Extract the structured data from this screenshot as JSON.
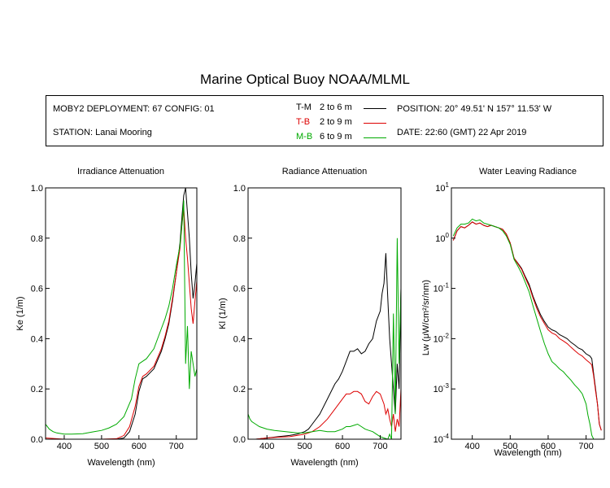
{
  "title": "Marine Optical Buoy NOAA/MLML",
  "info": {
    "deployment": "MOBY2 DEPLOYMENT: 67 CONFIG: 01",
    "station": "STATION: Lanai Mooring",
    "position": "POSITION: 20° 49.51' N   157° 11.53' W",
    "date": "DATE: 22:60 (GMT) 22 Apr 2019"
  },
  "legend": [
    {
      "code": "T-M",
      "range": "2 to 6  m",
      "color": "#000000"
    },
    {
      "code": "T-B",
      "range": "2 to 9  m",
      "color": "#dd0000"
    },
    {
      "code": "M-B",
      "range": "6 to 9  m",
      "color": "#00aa00"
    }
  ],
  "chart_data": [
    {
      "type": "line",
      "title": "Irradiance Attenuation",
      "xlabel": "Wavelength (nm)",
      "ylabel": "Ke  (1/m)",
      "xlim": [
        350,
        755
      ],
      "ylim": [
        0,
        1
      ],
      "xticks": [
        "400",
        "500",
        "600",
        "700"
      ],
      "xtick_values": [
        400,
        500,
        600,
        700
      ],
      "yticks": [
        "0.0",
        "0.2",
        "0.4",
        "0.6",
        "0.8",
        "1.0"
      ],
      "ytick_values": [
        0,
        0.2,
        0.4,
        0.6,
        0.8,
        1.0
      ],
      "series": [
        {
          "color": "#000000",
          "x": [
            350,
            400,
            450,
            500,
            540,
            560,
            575,
            590,
            600,
            610,
            620,
            640,
            660,
            670,
            680,
            690,
            700,
            710,
            715,
            720,
            725,
            730,
            735,
            740,
            745,
            750,
            755
          ],
          "y": [
            0,
            0,
            0,
            0,
            0,
            0.005,
            0.03,
            0.1,
            0.19,
            0.24,
            0.25,
            0.28,
            0.35,
            0.4,
            0.46,
            0.55,
            0.66,
            0.78,
            0.88,
            0.97,
            1.0,
            0.9,
            0.8,
            0.66,
            0.56,
            0.62,
            0.7
          ]
        },
        {
          "color": "#dd0000",
          "x": [
            350,
            400,
            450,
            500,
            540,
            560,
            575,
            590,
            600,
            610,
            620,
            640,
            660,
            670,
            680,
            690,
            700,
            710,
            715,
            720,
            725,
            730,
            735,
            740,
            745,
            750,
            755
          ],
          "y": [
            0.005,
            0.0,
            0.0,
            0.0,
            0.002,
            0.015,
            0.05,
            0.13,
            0.21,
            0.25,
            0.26,
            0.29,
            0.36,
            0.41,
            0.47,
            0.56,
            0.66,
            0.76,
            0.85,
            0.92,
            0.8,
            0.72,
            0.62,
            0.52,
            0.46,
            0.55,
            0.63
          ]
        },
        {
          "color": "#00aa00",
          "x": [
            350,
            360,
            370,
            380,
            400,
            420,
            450,
            480,
            500,
            520,
            540,
            560,
            580,
            590,
            600,
            610,
            620,
            640,
            660,
            670,
            680,
            690,
            700,
            710,
            715,
            720,
            725,
            730,
            735,
            740,
            745,
            750,
            755
          ],
          "y": [
            0.06,
            0.04,
            0.03,
            0.025,
            0.02,
            0.02,
            0.022,
            0.03,
            0.035,
            0.045,
            0.06,
            0.09,
            0.16,
            0.24,
            0.3,
            0.31,
            0.32,
            0.36,
            0.44,
            0.48,
            0.53,
            0.6,
            0.69,
            0.77,
            0.85,
            0.95,
            0.3,
            0.45,
            0.2,
            0.35,
            0.3,
            0.25,
            0.28
          ]
        }
      ]
    },
    {
      "type": "line",
      "title": "Radiance Attenuation",
      "xlabel": "Wavelength (nm)",
      "ylabel": "Kl  (1/m)",
      "xlim": [
        350,
        755
      ],
      "ylim": [
        0,
        1
      ],
      "xticks": [
        "400",
        "500",
        "600",
        "700"
      ],
      "xtick_values": [
        400,
        500,
        600,
        700
      ],
      "yticks": [
        "0.0",
        "0.2",
        "0.4",
        "0.6",
        "0.8",
        "1.0"
      ],
      "ytick_values": [
        0,
        0.2,
        0.4,
        0.6,
        0.8,
        1.0
      ],
      "series": [
        {
          "color": "#000000",
          "x": [
            350,
            370,
            400,
            430,
            460,
            480,
            500,
            510,
            520,
            540,
            560,
            580,
            590,
            600,
            610,
            620,
            630,
            640,
            650,
            660,
            670,
            680,
            690,
            700,
            705,
            710,
            715,
            720,
            725,
            730,
            735,
            740,
            745,
            750,
            755
          ],
          "y": [
            0.0,
            0.0,
            0.005,
            0.01,
            0.015,
            0.02,
            0.03,
            0.04,
            0.06,
            0.1,
            0.16,
            0.22,
            0.24,
            0.27,
            0.31,
            0.35,
            0.35,
            0.36,
            0.34,
            0.35,
            0.38,
            0.4,
            0.47,
            0.51,
            0.58,
            0.62,
            0.74,
            0.56,
            0.4,
            0.3,
            0.2,
            0.1,
            0.3,
            0.2,
            0.6
          ]
        },
        {
          "color": "#dd0000",
          "x": [
            350,
            370,
            400,
            430,
            460,
            480,
            500,
            520,
            540,
            560,
            580,
            600,
            610,
            620,
            630,
            640,
            650,
            660,
            670,
            680,
            690,
            700,
            710,
            715,
            720,
            725,
            730,
            735,
            740,
            745,
            750,
            755
          ],
          "y": [
            0.0,
            0.0,
            0.005,
            0.008,
            0.01,
            0.015,
            0.02,
            0.03,
            0.05,
            0.08,
            0.12,
            0.16,
            0.18,
            0.18,
            0.19,
            0.19,
            0.18,
            0.15,
            0.14,
            0.17,
            0.19,
            0.18,
            0.14,
            0.1,
            0.12,
            0.08,
            0.05,
            0.1,
            0.03,
            0.08,
            0.05,
            0.2
          ]
        },
        {
          "color": "#00aa00",
          "x": [
            350,
            355,
            360,
            370,
            380,
            400,
            420,
            450,
            480,
            500,
            520,
            540,
            560,
            580,
            600,
            610,
            620,
            630,
            640,
            650,
            660,
            670,
            680,
            690,
            700,
            710,
            720,
            725,
            730,
            735,
            740,
            745,
            750,
            755
          ],
          "y": [
            0.1,
            0.08,
            0.07,
            0.06,
            0.05,
            0.04,
            0.035,
            0.03,
            0.025,
            0.025,
            0.03,
            0.035,
            0.03,
            0.03,
            0.04,
            0.05,
            0.05,
            0.055,
            0.06,
            0.05,
            0.04,
            0.035,
            0.03,
            0.02,
            0.01,
            0.005,
            0.0,
            0.02,
            0.0,
            0.5,
            0.1,
            0.8,
            0.3,
            0.6
          ]
        }
      ]
    },
    {
      "type": "line",
      "title": "Water Leaving Radiance",
      "xlabel": "Wavelength (nm)",
      "ylabel": "Lw  (μW/cm²/sr/nm)",
      "yscale": "log",
      "xlim": [
        345,
        748
      ],
      "ylim": [
        0.0001,
        10
      ],
      "xticks": [
        "400",
        "500",
        "600",
        "700"
      ],
      "xtick_values": [
        400,
        500,
        600,
        700
      ],
      "ytick_exponents": [
        "1",
        "0",
        "-1",
        "-2",
        "-3",
        "-4"
      ],
      "ytick_values": [
        10,
        1,
        0.1,
        0.01,
        0.001,
        0.0001
      ],
      "series": [
        {
          "color": "#000000",
          "x": [
            350,
            360,
            370,
            380,
            390,
            400,
            410,
            420,
            430,
            440,
            450,
            460,
            470,
            480,
            490,
            500,
            510,
            520,
            530,
            540,
            550,
            560,
            570,
            580,
            590,
            600,
            610,
            620,
            630,
            640,
            650,
            660,
            670,
            680,
            690,
            700,
            710,
            715,
            720,
            725,
            730,
            735,
            740
          ],
          "y": [
            0.9,
            1.4,
            1.7,
            1.6,
            1.8,
            2.1,
            1.9,
            2.0,
            1.8,
            1.7,
            1.8,
            1.7,
            1.6,
            1.5,
            1.2,
            0.8,
            0.4,
            0.32,
            0.25,
            0.17,
            0.12,
            0.07,
            0.045,
            0.03,
            0.022,
            0.017,
            0.015,
            0.014,
            0.012,
            0.011,
            0.01,
            0.0085,
            0.0075,
            0.0065,
            0.006,
            0.005,
            0.0045,
            0.004,
            0.002,
            0.001,
            0.0005,
            0.0002,
            0.00015
          ]
        },
        {
          "color": "#dd0000",
          "x": [
            350,
            360,
            370,
            380,
            390,
            400,
            410,
            420,
            430,
            440,
            450,
            460,
            470,
            480,
            490,
            500,
            510,
            520,
            530,
            540,
            550,
            560,
            570,
            580,
            590,
            600,
            610,
            620,
            630,
            640,
            650,
            660,
            670,
            680,
            690,
            700,
            710,
            715,
            720,
            725,
            730,
            735,
            740
          ],
          "y": [
            0.9,
            1.4,
            1.7,
            1.6,
            1.8,
            2.1,
            1.9,
            2.0,
            1.8,
            1.7,
            1.8,
            1.7,
            1.6,
            1.5,
            1.2,
            0.8,
            0.4,
            0.31,
            0.24,
            0.16,
            0.11,
            0.065,
            0.04,
            0.027,
            0.02,
            0.015,
            0.013,
            0.012,
            0.01,
            0.009,
            0.008,
            0.0068,
            0.0058,
            0.005,
            0.0045,
            0.0038,
            0.0033,
            0.003,
            0.0018,
            0.0009,
            0.0005,
            0.0002,
            0.00015
          ]
        },
        {
          "color": "#00aa00",
          "x": [
            350,
            360,
            370,
            380,
            390,
            400,
            410,
            420,
            430,
            440,
            450,
            460,
            470,
            480,
            490,
            500,
            510,
            520,
            530,
            540,
            550,
            560,
            570,
            580,
            590,
            600,
            610,
            620,
            630,
            640,
            650,
            660,
            670,
            680,
            690,
            700,
            705,
            710,
            715,
            720
          ],
          "y": [
            1.1,
            1.6,
            1.9,
            1.9,
            2.0,
            2.4,
            2.2,
            2.3,
            2.0,
            1.9,
            1.8,
            1.7,
            1.6,
            1.4,
            1.1,
            0.75,
            0.38,
            0.28,
            0.2,
            0.13,
            0.085,
            0.045,
            0.025,
            0.014,
            0.008,
            0.005,
            0.0035,
            0.003,
            0.0025,
            0.0022,
            0.0018,
            0.0015,
            0.0012,
            0.001,
            0.0008,
            0.0005,
            0.0003,
            0.0002,
            0.00012,
            0.0001
          ]
        }
      ]
    }
  ]
}
